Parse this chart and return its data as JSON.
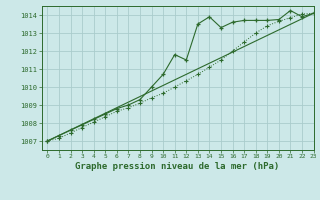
{
  "background_color": "#cce8e8",
  "grid_color": "#aacccc",
  "line_color": "#2d6a2d",
  "title": "Graphe pression niveau de la mer (hPa)",
  "xlim": [
    -0.5,
    23
  ],
  "ylim": [
    1006.5,
    1014.5
  ],
  "yticks": [
    1007,
    1008,
    1009,
    1010,
    1011,
    1012,
    1013,
    1014
  ],
  "xticks": [
    0,
    1,
    2,
    3,
    4,
    5,
    6,
    7,
    8,
    9,
    10,
    11,
    12,
    13,
    14,
    15,
    16,
    17,
    18,
    19,
    20,
    21,
    22,
    23
  ],
  "series_straight": {
    "x": [
      0,
      23
    ],
    "y": [
      1007.0,
      1014.1
    ]
  },
  "series_straight2": {
    "x": [
      0,
      23
    ],
    "y": [
      1007.0,
      1014.1
    ]
  },
  "series_main": {
    "x": [
      0,
      1,
      2,
      3,
      4,
      5,
      6,
      7,
      8,
      9,
      10,
      11,
      12,
      13,
      14,
      15,
      16,
      17,
      18,
      19,
      20,
      21,
      22,
      23
    ],
    "y": [
      1007.0,
      1007.3,
      1007.6,
      1007.9,
      1008.2,
      1008.5,
      1008.8,
      1009.0,
      1009.3,
      1010.0,
      1010.7,
      1011.8,
      1011.5,
      1013.5,
      1013.9,
      1013.3,
      1013.6,
      1013.7,
      1013.7,
      1013.7,
      1013.75,
      1014.25,
      1013.9,
      1014.1
    ]
  },
  "series_dotted": {
    "x": [
      0,
      1,
      2,
      3,
      4,
      5,
      6,
      7,
      8,
      9,
      10,
      11,
      12,
      13,
      14,
      15,
      16,
      17,
      18,
      19,
      20,
      21,
      22,
      23
    ],
    "y": [
      1007.0,
      1007.15,
      1007.45,
      1007.75,
      1008.05,
      1008.35,
      1008.65,
      1008.85,
      1009.1,
      1009.4,
      1009.65,
      1010.0,
      1010.35,
      1010.7,
      1011.1,
      1011.5,
      1012.0,
      1012.5,
      1013.0,
      1013.4,
      1013.65,
      1013.85,
      1014.05,
      1014.1
    ]
  }
}
